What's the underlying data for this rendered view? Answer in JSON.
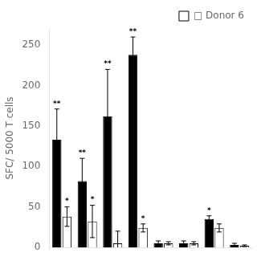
{
  "chart_data": {
    "type": "bar",
    "categories": [
      null,
      null,
      null,
      null,
      null,
      null,
      null,
      null
    ],
    "series": [
      {
        "color": "#000000",
        "values": [
          133,
          82,
          162,
          238,
          5,
          5,
          35,
          3
        ],
        "errors": [
          38,
          28,
          58,
          22,
          3,
          3,
          4,
          2
        ],
        "significance": [
          "**",
          "**",
          "**",
          "**",
          null,
          null,
          "*",
          null
        ]
      },
      {
        "name": "□ Donor 6",
        "color": "#ffffff",
        "values": [
          38,
          32,
          5,
          24,
          5,
          5,
          24,
          2
        ],
        "errors": [
          12,
          20,
          15,
          5,
          2,
          2,
          5,
          1
        ],
        "significance": [
          "*",
          "*",
          null,
          "*",
          null,
          null,
          null,
          null
        ]
      }
    ],
    "ylabel": "SFC/ 5000 T cells",
    "ylim": [
      0,
      270
    ],
    "yticks": [
      0,
      50,
      100,
      150,
      200,
      250
    ],
    "grid": false,
    "legend": "upper right",
    "tick_labels": "y"
  }
}
